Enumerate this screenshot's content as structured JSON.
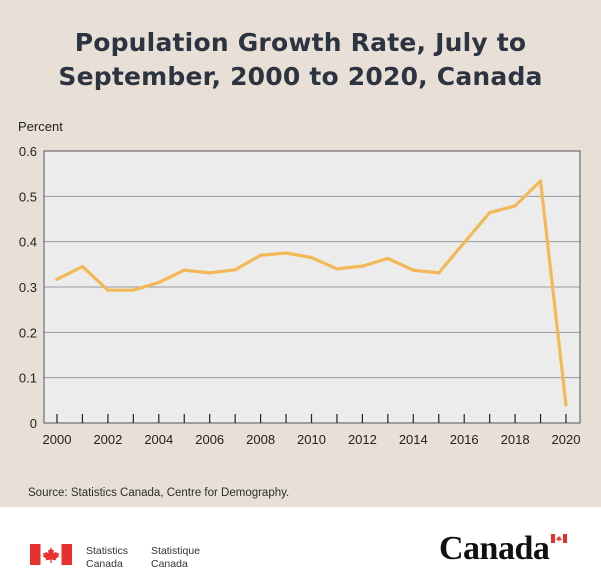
{
  "title": {
    "line1": "Population Growth Rate, July to",
    "line2": "September, 2000 to 2020, Canada"
  },
  "source": "Source: Statistics Canada, Centre for Demography.",
  "footer": {
    "org_en_line1": "Statistics",
    "org_en_line2": "Canada",
    "org_fr_line1": "Statistique",
    "org_fr_line2": "Canada",
    "wordmark": "Canada"
  },
  "colors": {
    "background": "#e8e0d6",
    "plot_background": "#ececec",
    "line": "#f2b956",
    "title": "#2d3441",
    "flag_red": "#e8312f"
  },
  "chart_data": {
    "type": "line",
    "ylabel": "Percent",
    "xlabel": "",
    "ylim": [
      0,
      0.6
    ],
    "yticks": [
      "0",
      "0.1",
      "0.2",
      "0.3",
      "0.4",
      "0.5",
      "0.6"
    ],
    "xticks": [
      "2000",
      "2002",
      "2004",
      "2006",
      "2008",
      "2010",
      "2012",
      "2014",
      "2016",
      "2018",
      "2020"
    ],
    "grid": "horizontal",
    "legend": "none",
    "x": [
      2000,
      2001,
      2002,
      2003,
      2004,
      2005,
      2006,
      2007,
      2008,
      2009,
      2010,
      2011,
      2012,
      2013,
      2014,
      2015,
      2016,
      2017,
      2018,
      2019,
      2020
    ],
    "series": [
      {
        "values": [
          0.317,
          0.345,
          0.293,
          0.293,
          0.31,
          0.337,
          0.331,
          0.338,
          0.37,
          0.375,
          0.365,
          0.34,
          0.346,
          0.363,
          0.337,
          0.331,
          0.398,
          0.464,
          0.479,
          0.534,
          0.04
        ]
      }
    ]
  }
}
